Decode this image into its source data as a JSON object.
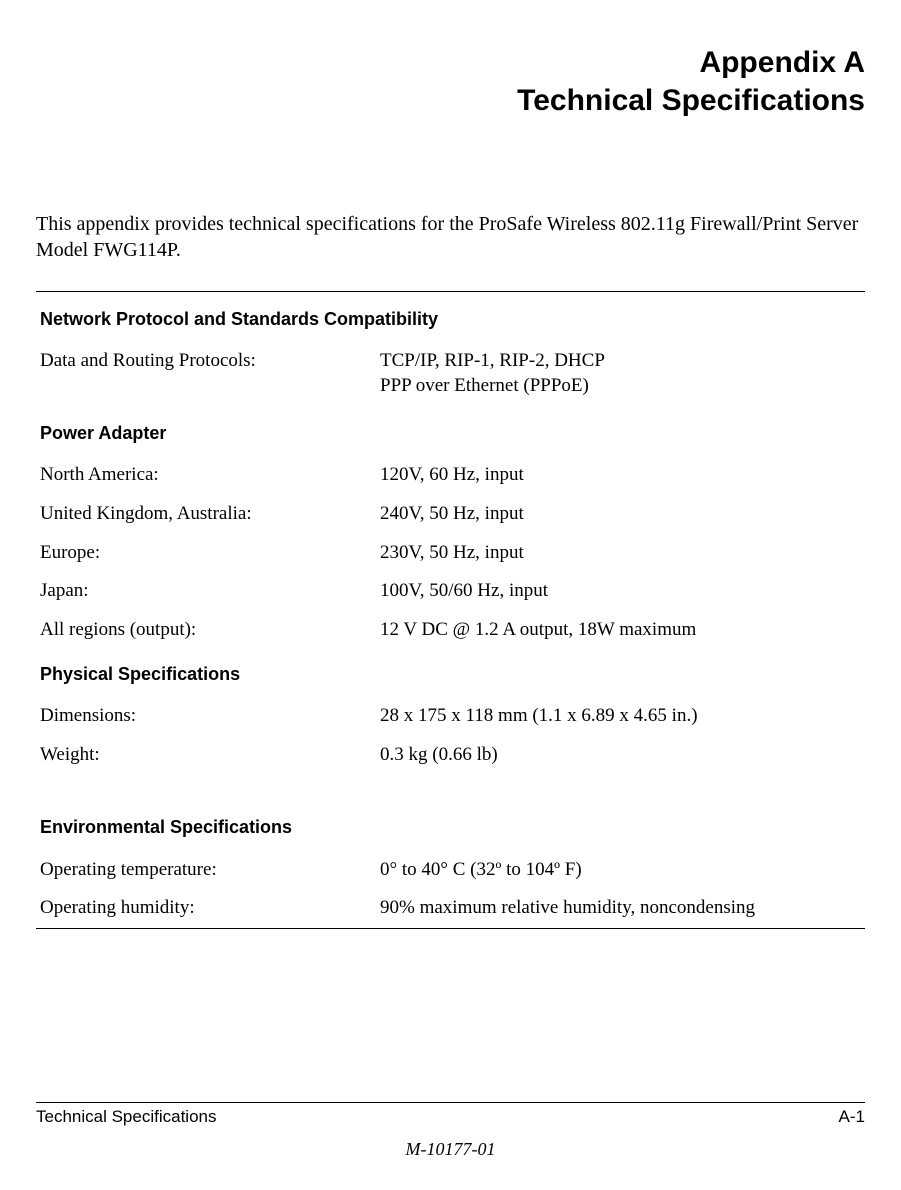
{
  "title": {
    "line1": "Appendix A",
    "line2": "Technical Specifications"
  },
  "intro": "This appendix provides technical specifications for the ProSafe Wireless 802.11g  Firewall/Print Server Model FWG114P.",
  "sections": {
    "network": {
      "header": "Network Protocol and Standards Compatibility",
      "rows": {
        "protocols": {
          "label": "Data and Routing Protocols:",
          "value_line1": "TCP/IP, RIP-1, RIP-2, DHCP",
          "value_line2": "PPP over Ethernet (PPPoE)"
        }
      }
    },
    "power": {
      "header": "Power Adapter",
      "rows": {
        "na": {
          "label": "North America:",
          "value": "120V, 60 Hz, input"
        },
        "uk": {
          "label": "United Kingdom, Australia:",
          "value": "240V, 50 Hz, input"
        },
        "eu": {
          "label": "Europe:",
          "value": "230V, 50 Hz, input"
        },
        "jp": {
          "label": "Japan:",
          "value": "100V, 50/60 Hz, input"
        },
        "out": {
          "label": "All regions (output):",
          "value": "12 V DC @ 1.2 A output, 18W maximum"
        }
      }
    },
    "physical": {
      "header": "Physical Specifications",
      "rows": {
        "dim": {
          "label": "Dimensions:",
          "value": "28 x 175 x 118 mm   (1.1 x 6.89 x 4.65 in.)"
        },
        "wt": {
          "label": "Weight:",
          "value": "0.3 kg   (0.66 lb)"
        }
      }
    },
    "env": {
      "header": "Environmental Specifications",
      "rows": {
        "temp": {
          "label": "Operating temperature:",
          "value": "0° to 40° C    (32º to 104º F)"
        },
        "hum": {
          "label": "Operating humidity:",
          "value": "90% maximum relative humidity, noncondensing"
        }
      }
    }
  },
  "footer": {
    "left": "Technical Specifications",
    "right": "A-1",
    "docnum": "M-10177-01"
  }
}
